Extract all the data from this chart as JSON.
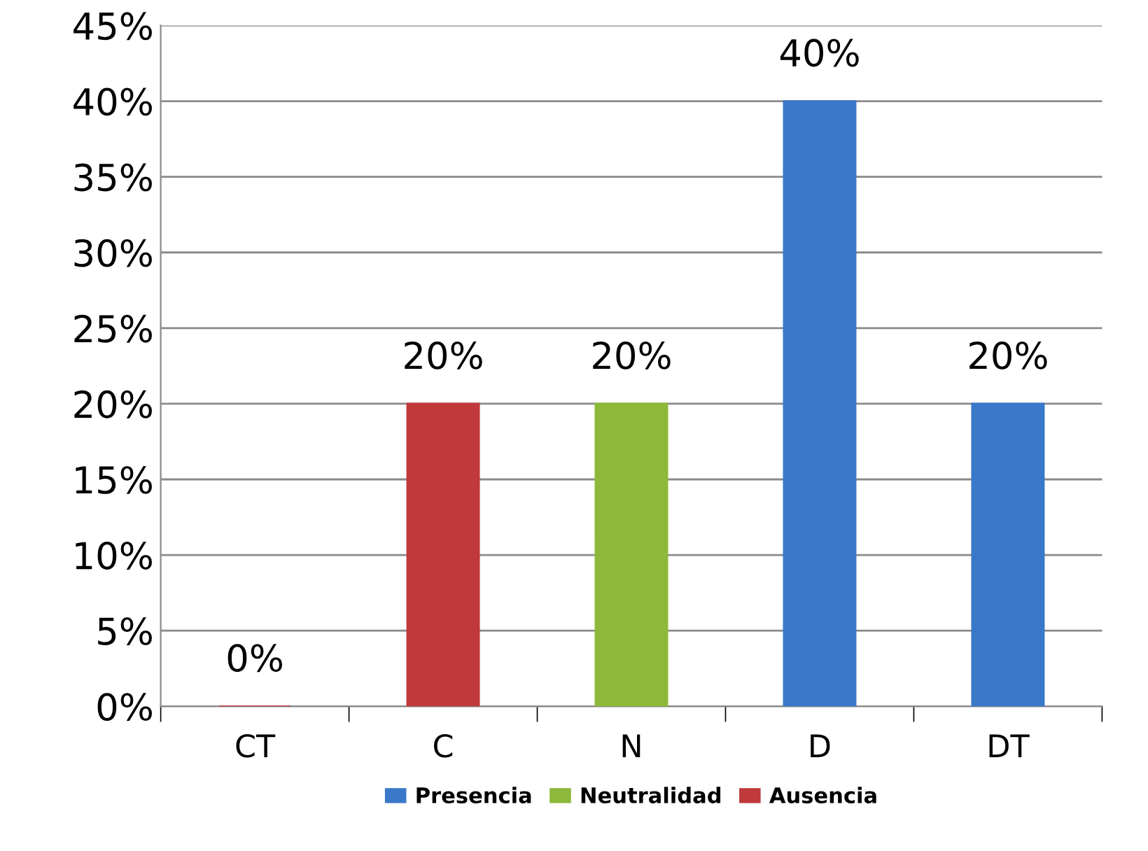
{
  "chart_data": {
    "type": "bar",
    "categories": [
      "CT",
      "C",
      "N",
      "D",
      "DT"
    ],
    "series": [
      {
        "name": "Presencia",
        "color": "#3a78c9",
        "values": [
          null,
          null,
          null,
          40,
          20
        ],
        "value_labels": [
          null,
          null,
          null,
          "40%",
          "20%"
        ]
      },
      {
        "name": "Neutralidad",
        "color": "#8db83a",
        "values": [
          null,
          null,
          20,
          null,
          null
        ],
        "value_labels": [
          null,
          null,
          "20%",
          null,
          null
        ]
      },
      {
        "name": "Ausencia",
        "color": "#c0393b",
        "values": [
          0,
          20,
          null,
          null,
          null
        ],
        "value_labels": [
          "0%",
          "20%",
          null,
          null,
          null
        ]
      }
    ],
    "ylim": [
      0,
      45
    ],
    "yticks": [
      {
        "value": 0,
        "label": "0%"
      },
      {
        "value": 5,
        "label": "5%"
      },
      {
        "value": 10,
        "label": "10%"
      },
      {
        "value": 15,
        "label": "15%"
      },
      {
        "value": 20,
        "label": "20%"
      },
      {
        "value": 25,
        "label": "25%"
      },
      {
        "value": 30,
        "label": "30%"
      },
      {
        "value": 35,
        "label": "35%"
      },
      {
        "value": 40,
        "label": "40%"
      },
      {
        "value": 45,
        "label": "45%"
      }
    ],
    "grid": "y",
    "legend": "bottom"
  }
}
